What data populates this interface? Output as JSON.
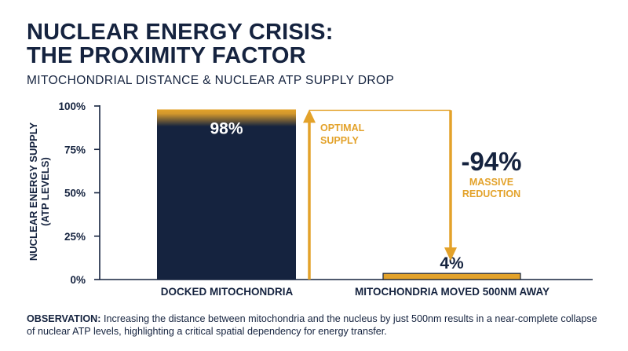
{
  "header": {
    "title_line1": "NUCLEAR ENERGY CRISIS:",
    "title_line2": "THE PROXIMITY FACTOR",
    "subtitle": "MITOCHONDRIAL DISTANCE & NUCLEAR ATP SUPPLY DROP"
  },
  "chart_data": {
    "type": "bar",
    "categories": [
      "DOCKED MITOCHONDRIA",
      "MITOCHONDRIA MOVED 500NM AWAY"
    ],
    "values": [
      98,
      4
    ],
    "value_labels": [
      "98%",
      "4%"
    ],
    "ylabel_line1": "NUCLEAR ENERGY SUPPLY",
    "ylabel_line2": "(ATP LEVELS)",
    "yticks": [
      0,
      25,
      50,
      75,
      100
    ],
    "ytick_labels": [
      "0%",
      "25%",
      "50%",
      "75%",
      "100%"
    ],
    "ylim": [
      0,
      100
    ],
    "grid": false,
    "annotations": {
      "optimal_line1": "OPTIMAL",
      "optimal_line2": "SUPPLY",
      "change": "-94%",
      "change_line1": "MASSIVE",
      "change_line2": "REDUCTION"
    },
    "colors": {
      "navy": "#15233f",
      "gold": "#e3a22a"
    }
  },
  "observation": {
    "label": "OBSERVATION:",
    "text": " Increasing the distance between mitochondria and the nucleus by just 500nm results in a near-complete collapse of nuclear ATP levels, highlighting a critical spatial dependency for energy transfer."
  }
}
